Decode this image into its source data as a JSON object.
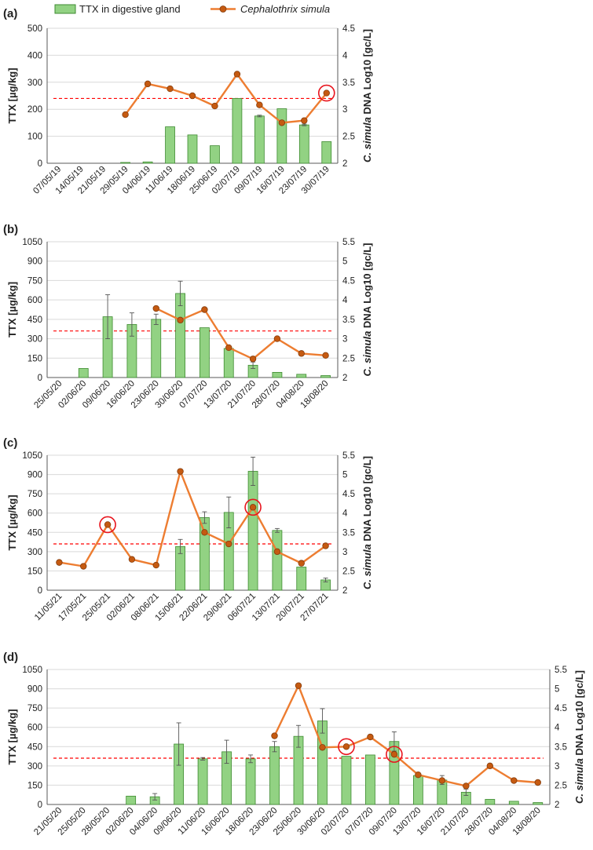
{
  "chart_data": [
    {
      "type": "bar",
      "panel_label": "(a)",
      "categories": [
        "07/05/19",
        "14/05/19",
        "21/05/19",
        "29/05/19",
        "04/06/19",
        "11/06/19",
        "18/06/19",
        "25/06/19",
        "02/07/19",
        "09/07/19",
        "16/07/19",
        "23/07/19",
        "30/07/19"
      ],
      "series": [
        {
          "name": "TTX in digestive gland",
          "type": "bar",
          "axis": "left",
          "values": [
            null,
            null,
            null,
            3,
            5,
            135,
            105,
            65,
            240,
            175,
            202,
            142,
            80
          ],
          "errors": [
            null,
            null,
            null,
            0,
            0,
            0,
            0,
            0,
            0,
            3,
            0,
            3,
            0
          ]
        },
        {
          "name": "Cephalothrix simula",
          "type": "line",
          "axis": "right",
          "values": [
            null,
            null,
            null,
            2.9,
            3.47,
            3.38,
            3.25,
            3.06,
            3.65,
            3.08,
            2.75,
            2.79,
            3.3
          ]
        }
      ],
      "ylabel_left": "TTX [µg/kg]",
      "ylabel_right_italic": "C. simula",
      "ylabel_right_rest": " DNA Log10 [gc/L]",
      "ylim_left": [
        0,
        500
      ],
      "ylim_right": [
        2,
        4.5
      ],
      "yticks_left": [
        "0",
        "100",
        "200",
        "300",
        "400",
        "500"
      ],
      "yticks_right": [
        "2",
        "2.5",
        "3",
        "3.5",
        "4",
        "4.5"
      ],
      "threshold_right": 3.2,
      "circled_indices": [
        12
      ],
      "grid": "horizontal"
    },
    {
      "type": "bar",
      "panel_label": "(b)",
      "categories": [
        "25/05/20",
        "02/06/20",
        "09/06/20",
        "16/06/20",
        "23/06/20",
        "30/06/20",
        "07/07/20",
        "13/07/20",
        "21/07/20",
        "28/07/20",
        "04/08/20",
        "18/08/20"
      ],
      "series": [
        {
          "name": "TTX in digestive gland",
          "type": "bar",
          "axis": "left",
          "values": [
            null,
            70,
            470,
            410,
            450,
            650,
            385,
            225,
            95,
            40,
            25,
            15
          ],
          "errors": [
            null,
            0,
            170,
            90,
            40,
            95,
            0,
            0,
            25,
            0,
            0,
            0
          ]
        },
        {
          "name": "Cephalothrix simula",
          "type": "line",
          "axis": "right",
          "values": [
            null,
            null,
            null,
            null,
            3.78,
            3.48,
            3.75,
            2.77,
            2.48,
            3.0,
            2.62,
            2.57
          ]
        }
      ],
      "ylabel_left": "TTX [µg/kg]",
      "ylabel_right_italic": "C. simula",
      "ylabel_right_rest": " DNA Log10 [gc/L]",
      "ylim_left": [
        0,
        1050
      ],
      "ylim_right": [
        2,
        5.5
      ],
      "yticks_left": [
        "0",
        "150",
        "300",
        "450",
        "600",
        "750",
        "900",
        "1050"
      ],
      "yticks_right": [
        "2",
        "2.5",
        "3",
        "3.5",
        "4",
        "4.5",
        "5",
        "5.5"
      ],
      "threshold_right": 3.2,
      "circled_indices": [],
      "grid": "horizontal"
    },
    {
      "type": "bar",
      "panel_label": "(c)",
      "categories": [
        "11/05/21",
        "17/05/21",
        "25/05/21",
        "02/06/21",
        "08/06/21",
        "15/06/21",
        "22/06/21",
        "29/06/21",
        "06/07/21",
        "13/07/21",
        "20/07/21",
        "27/07/21"
      ],
      "series": [
        {
          "name": "TTX in digestive gland",
          "type": "bar",
          "axis": "left",
          "values": [
            null,
            null,
            null,
            null,
            null,
            340,
            565,
            605,
            925,
            465,
            180,
            80
          ],
          "errors": [
            null,
            null,
            null,
            null,
            null,
            55,
            45,
            120,
            110,
            15,
            0,
            15
          ]
        },
        {
          "name": "Cephalothrix simula",
          "type": "line",
          "axis": "right",
          "values": [
            2.72,
            2.62,
            3.7,
            2.8,
            2.65,
            5.08,
            3.5,
            3.2,
            4.15,
            3.0,
            2.7,
            3.15
          ]
        }
      ],
      "ylabel_left": "TTX [µg/kg]",
      "ylabel_right_italic": "C. simula",
      "ylabel_right_rest": " DNA Log10 [gc/L]",
      "ylim_left": [
        0,
        1050
      ],
      "ylim_right": [
        2,
        5.5
      ],
      "yticks_left": [
        "0",
        "150",
        "300",
        "450",
        "600",
        "750",
        "900",
        "1050"
      ],
      "yticks_right": [
        "2",
        "2.5",
        "3",
        "3.5",
        "4",
        "4.5",
        "5",
        "5.5"
      ],
      "threshold_right": 3.2,
      "circled_indices": [
        2,
        8
      ],
      "grid": "horizontal"
    },
    {
      "type": "bar",
      "panel_label": "(d)",
      "categories": [
        "21/05/20",
        "25/05/20",
        "28/05/20",
        "02/06/20",
        "04/06/20",
        "09/06/20",
        "11/06/20",
        "16/06/20",
        "18/06/20",
        "23/06/20",
        "25/06/20",
        "30/06/20",
        "02/07/20",
        "07/07/20",
        "09/07/20",
        "13/07/20",
        "16/07/20",
        "21/07/20",
        "28/07/20",
        "04/08/20",
        "18/08/20"
      ],
      "series": [
        {
          "name": "TTX in digestive gland",
          "type": "bar",
          "axis": "left",
          "values": [
            null,
            null,
            null,
            65,
            60,
            470,
            355,
            410,
            355,
            450,
            530,
            650,
            375,
            385,
            490,
            225,
            190,
            95,
            40,
            25,
            15
          ],
          "errors": [
            null,
            null,
            null,
            0,
            25,
            165,
            10,
            90,
            30,
            40,
            85,
            95,
            0,
            0,
            75,
            0,
            35,
            25,
            0,
            0,
            0
          ]
        },
        {
          "name": "Cephalothrix simula",
          "type": "line",
          "axis": "right",
          "values": [
            null,
            null,
            null,
            null,
            null,
            null,
            null,
            null,
            null,
            3.78,
            5.08,
            3.48,
            3.5,
            3.75,
            3.3,
            2.77,
            2.62,
            2.48,
            3.0,
            2.62,
            2.57
          ]
        }
      ],
      "ylabel_left": "TTX [µg/kg]",
      "ylabel_right_italic": "C. simula",
      "ylabel_right_rest": " DNA Log10 [gc/L]",
      "ylim_left": [
        0,
        1050
      ],
      "ylim_right": [
        2,
        5.5
      ],
      "yticks_left": [
        "0",
        "150",
        "300",
        "450",
        "600",
        "750",
        "900",
        "1050"
      ],
      "yticks_right": [
        "2",
        "2.5",
        "3",
        "3.5",
        "4",
        "4.5",
        "5",
        "5.5"
      ],
      "threshold_right": 3.2,
      "circled_indices": [
        12,
        14
      ],
      "grid": "horizontal"
    }
  ],
  "legend": {
    "bar_label": "TTX in digestive gland",
    "line_label": "Cephalothrix simula",
    "placement": "top"
  },
  "colors": {
    "bar_fill": "#92d283",
    "bar_stroke": "#3e8b30",
    "line": "#ed7d31",
    "marker_fill": "#c55a11",
    "marker_stroke": "#843c0c",
    "threshold": "#ff0000",
    "circle": "#e8141d",
    "grid": "#d9d9d9",
    "axis": "#595959"
  }
}
